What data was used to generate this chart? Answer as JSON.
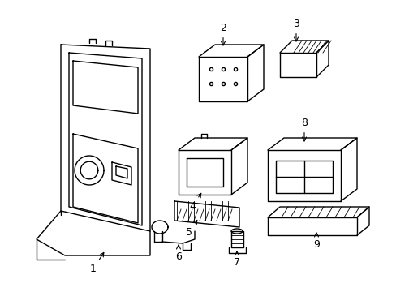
{
  "background_color": "#ffffff",
  "line_color": "#000000",
  "line_width": 1.0,
  "thin_lw": 0.6,
  "label_fontsize": 9
}
